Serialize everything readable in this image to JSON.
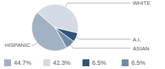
{
  "chart_data": {
    "type": "pie",
    "categories": [
      "HISPANIC",
      "WHITE",
      "A.I.",
      "ASIAN"
    ],
    "values": [
      44.7,
      42.3,
      6.5,
      6.5
    ],
    "value_labels": [
      "44.7%",
      "42.3%",
      "6.5%",
      "6.5%"
    ],
    "colors": [
      "#a3b1c4",
      "#d4dbe4",
      "#2e5478",
      "#6f8cab"
    ],
    "legend": "bottom"
  }
}
